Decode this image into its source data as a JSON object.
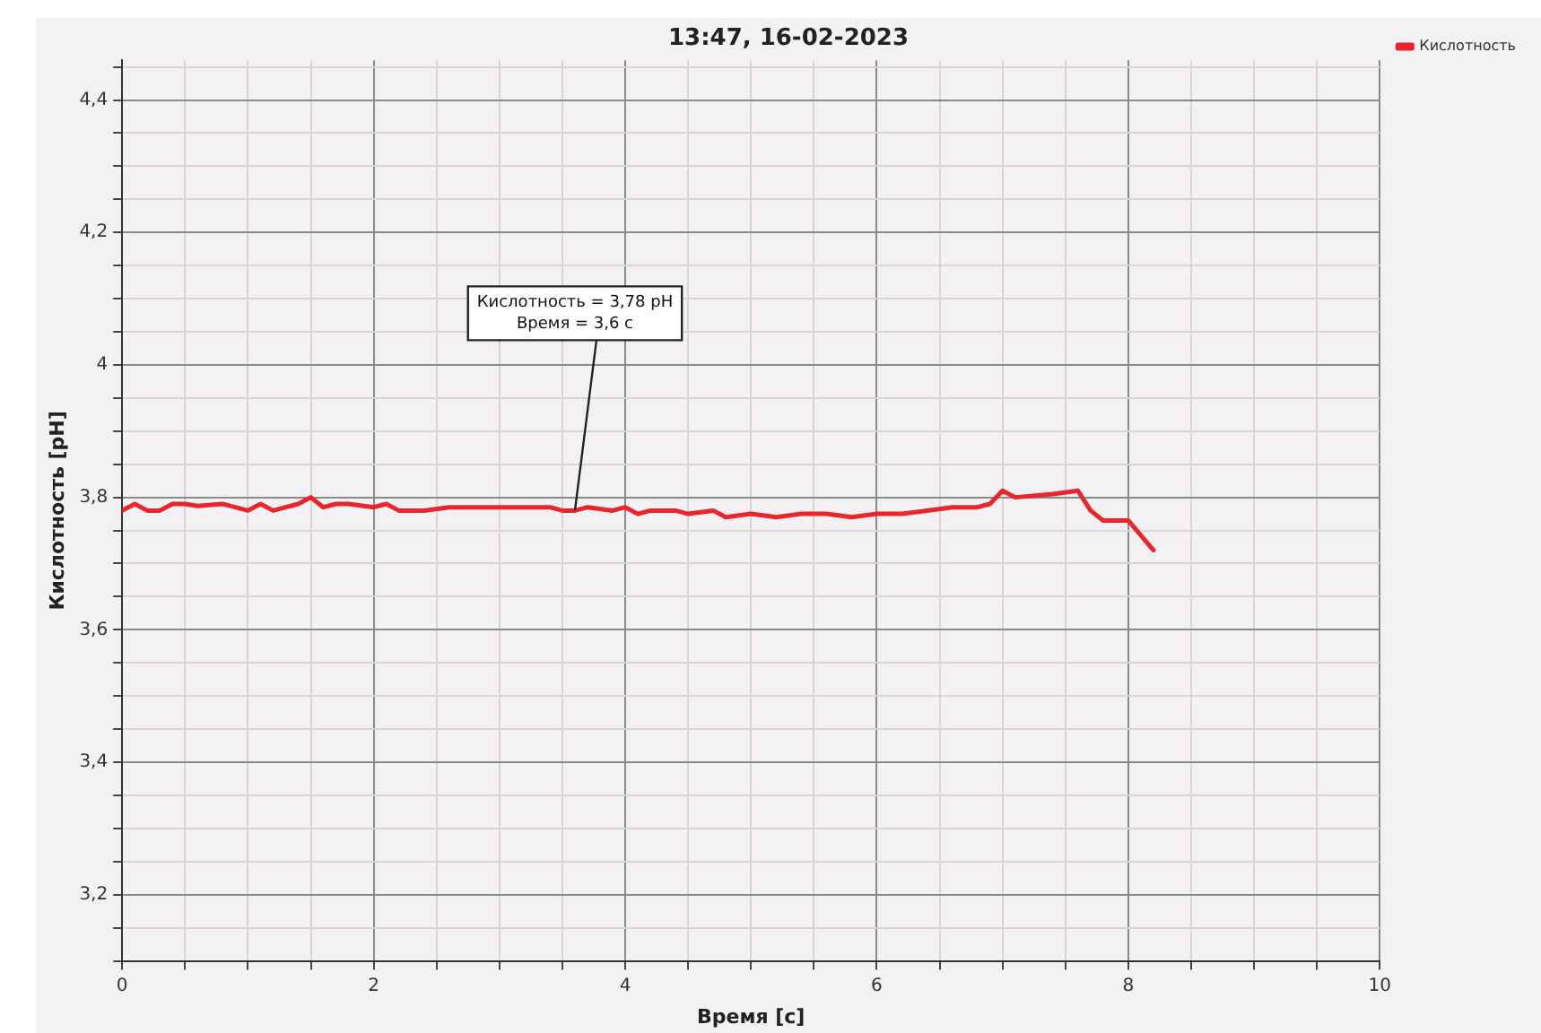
{
  "chart_data": {
    "type": "line",
    "title": "13:47, 16-02-2023",
    "xlabel": "Время [c]",
    "ylabel": "Кислотность [pH]",
    "xlim": [
      0,
      10
    ],
    "xticks": [
      0,
      2,
      4,
      6,
      8,
      10
    ],
    "ylim": [
      3.1,
      4.46
    ],
    "yticks": [
      {
        "value": 3.2,
        "label": "3,2"
      },
      {
        "value": 3.4,
        "label": "3,4"
      },
      {
        "value": 3.6,
        "label": "3,6"
      },
      {
        "value": 3.8,
        "label": "3,8"
      },
      4,
      {
        "value": 4.2,
        "label": "4,2"
      },
      {
        "value": 4.4,
        "label": "4,4"
      }
    ],
    "grid": true,
    "legend": "top right",
    "marker": "none",
    "line_style": "solid",
    "annotations": [
      {
        "text": "Кислотность = 3,78 pH\nВремя = 3,6 c",
        "x": 3.6,
        "y": 3.78
      }
    ],
    "series": [
      {
        "name": "Кислотность",
        "color": "#e8262b",
        "x": [
          0,
          0.1,
          0.2,
          0.3,
          0.4,
          0.5,
          0.6,
          0.8,
          1.0,
          1.1,
          1.2,
          1.3,
          1.4,
          1.5,
          1.6,
          1.7,
          1.8,
          2.0,
          2.1,
          2.2,
          2.4,
          2.6,
          2.8,
          3.0,
          3.2,
          3.4,
          3.5,
          3.6,
          3.7,
          3.9,
          4.0,
          4.1,
          4.2,
          4.4,
          4.5,
          4.7,
          4.8,
          5.0,
          5.2,
          5.4,
          5.6,
          5.8,
          6.0,
          6.2,
          6.4,
          6.6,
          6.8,
          6.9,
          7.0,
          7.1,
          7.4,
          7.6,
          7.7,
          7.8,
          8.0,
          8.2
        ],
        "values": [
          3.78,
          3.79,
          3.78,
          3.78,
          3.79,
          3.79,
          3.787,
          3.79,
          3.78,
          3.79,
          3.78,
          3.785,
          3.79,
          3.8,
          3.785,
          3.79,
          3.79,
          3.785,
          3.79,
          3.78,
          3.78,
          3.785,
          3.785,
          3.785,
          3.785,
          3.785,
          3.78,
          3.78,
          3.785,
          3.78,
          3.785,
          3.775,
          3.78,
          3.78,
          3.775,
          3.78,
          3.77,
          3.775,
          3.77,
          3.775,
          3.775,
          3.77,
          3.775,
          3.775,
          3.78,
          3.785,
          3.785,
          3.79,
          3.81,
          3.8,
          3.805,
          3.81,
          3.78,
          3.765,
          3.765,
          3.72
        ]
      }
    ]
  }
}
